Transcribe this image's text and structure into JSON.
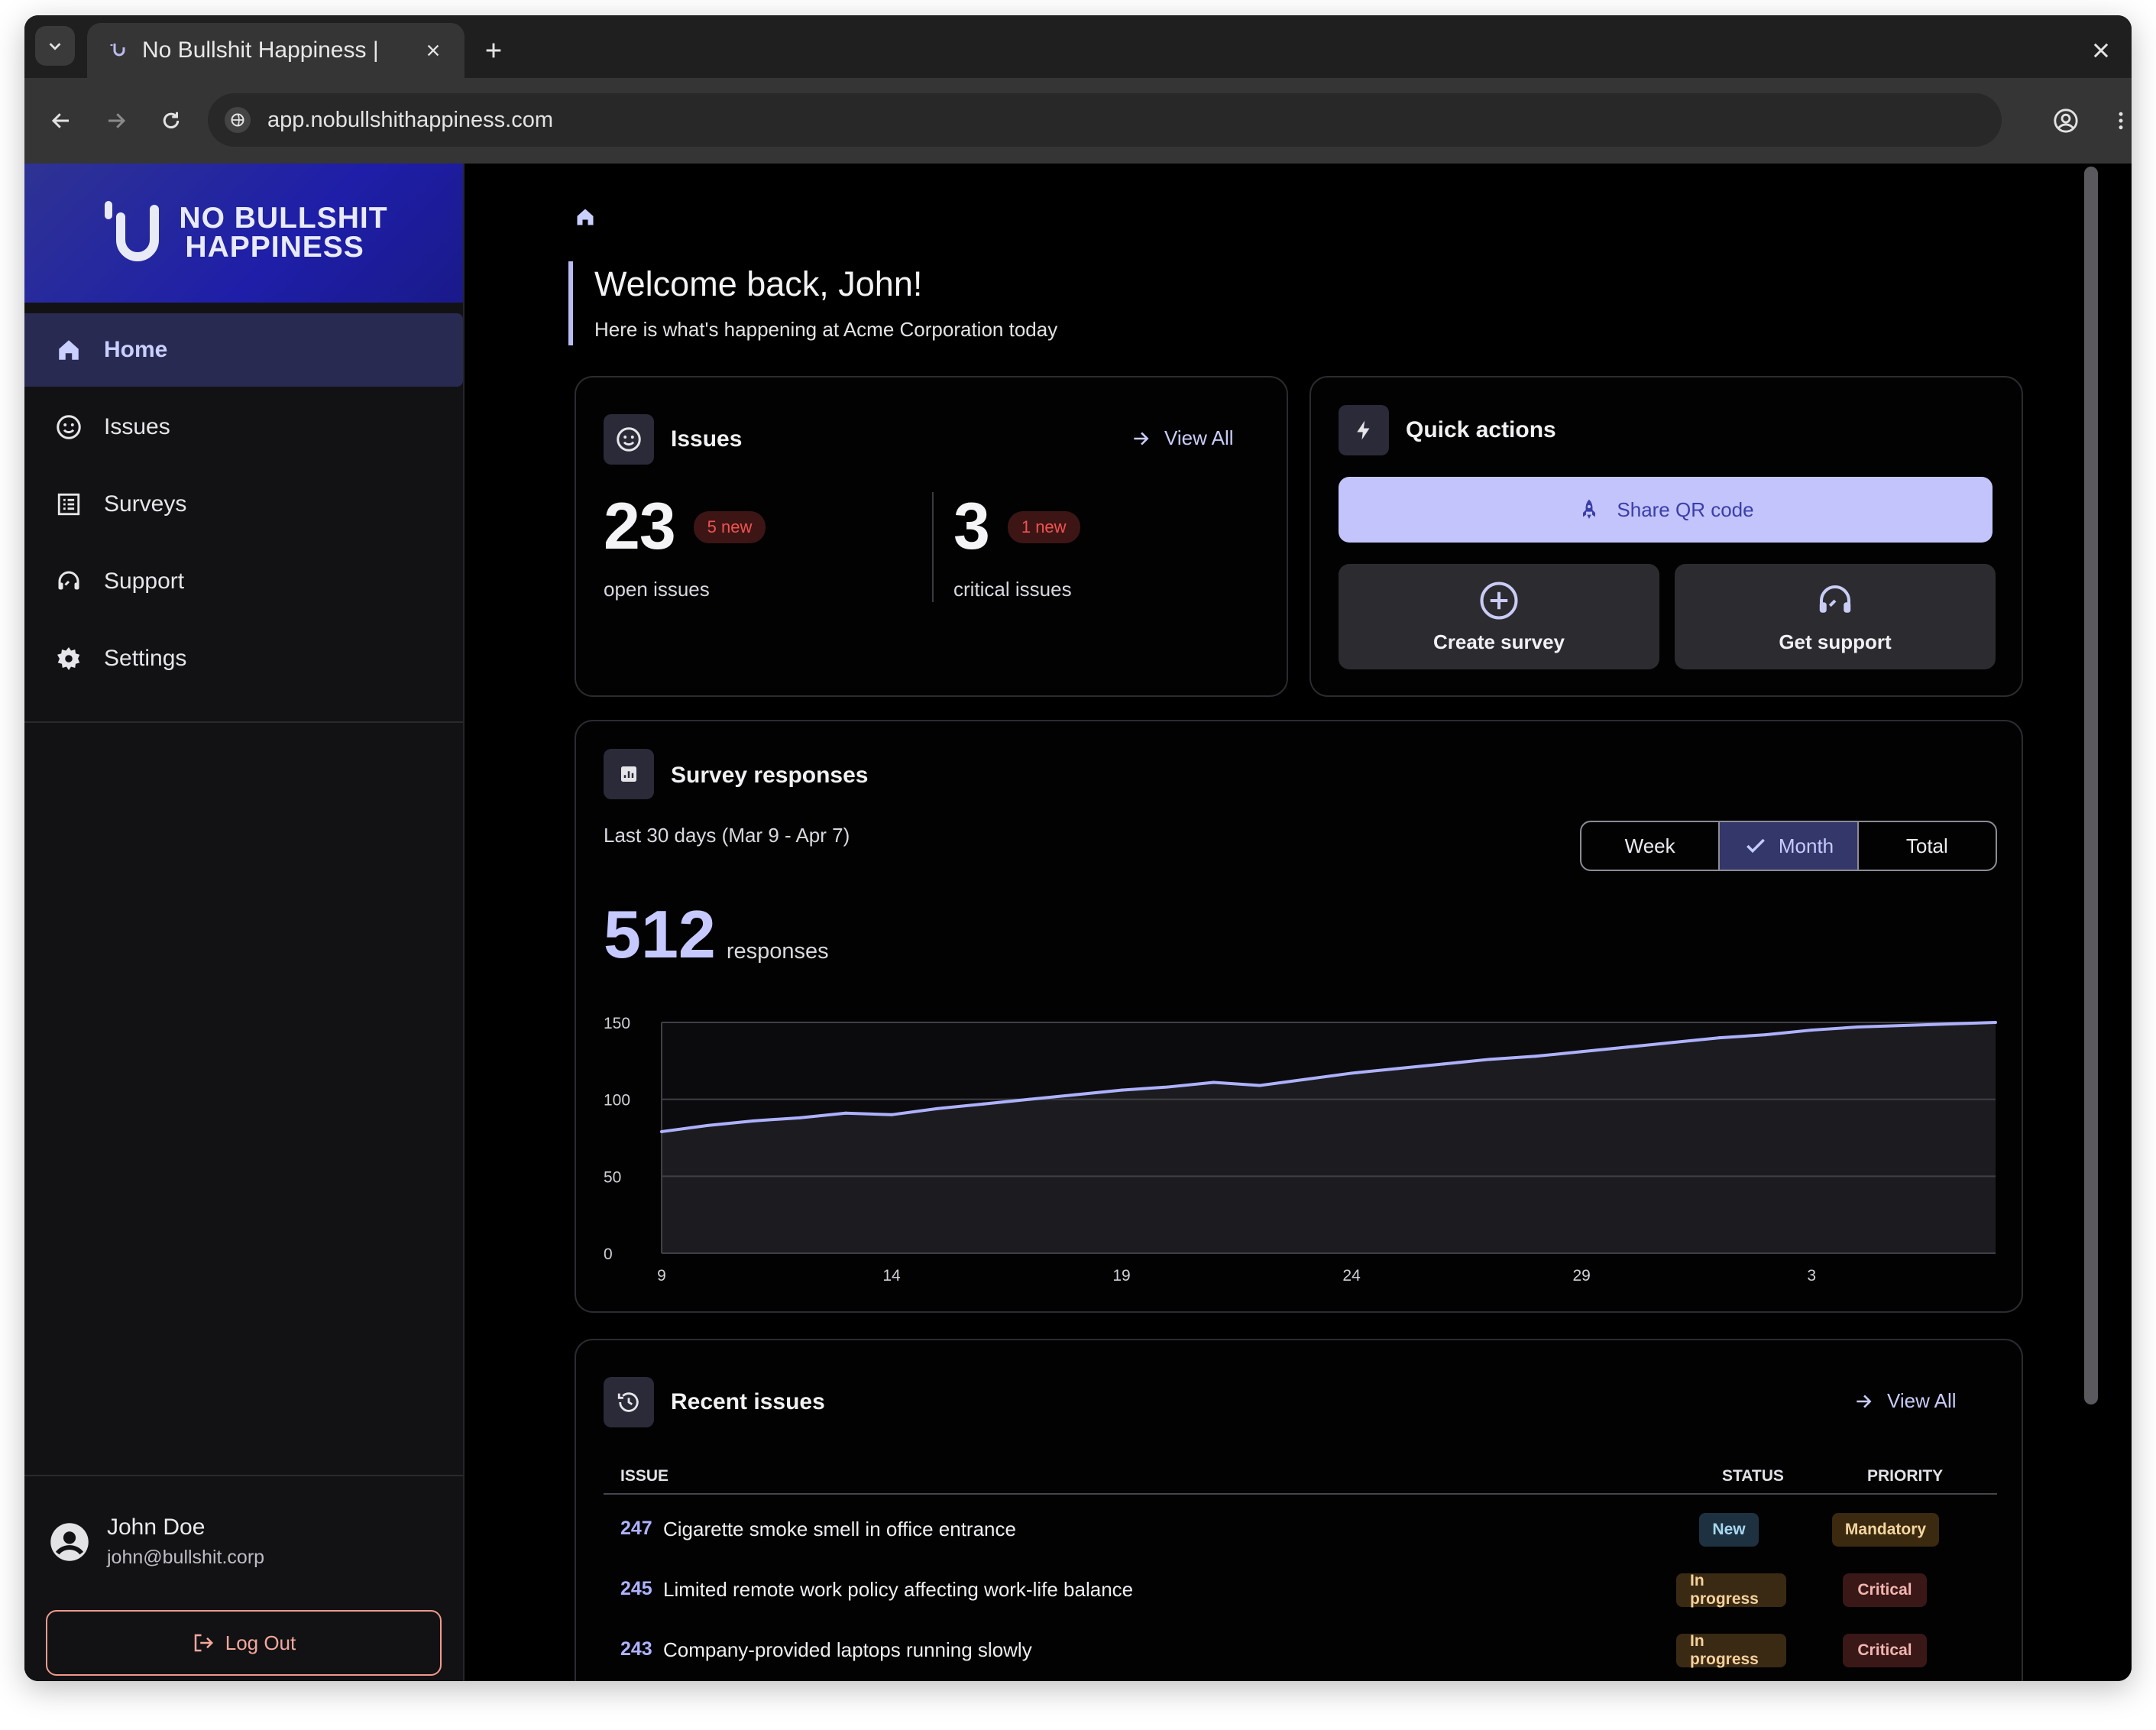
{
  "browser": {
    "tab_title": "No Bullshit Happiness |",
    "url": "app.nobullshithappiness.com"
  },
  "sidebar": {
    "brand_line1": "NO BULLSHIT",
    "brand_line2": "HAPPINESS",
    "items": [
      {
        "label": "Home",
        "icon": "home-icon",
        "active": true
      },
      {
        "label": "Issues",
        "icon": "smiley-icon",
        "active": false
      },
      {
        "label": "Surveys",
        "icon": "list-icon",
        "active": false
      },
      {
        "label": "Support",
        "icon": "headset-icon",
        "active": false
      },
      {
        "label": "Settings",
        "icon": "gear-icon",
        "active": false
      }
    ],
    "user": {
      "name": "John Doe",
      "email": "john@bullshit.corp"
    },
    "logout_label": "Log Out"
  },
  "welcome": {
    "title": "Welcome back, John!",
    "subtitle": "Here is what's happening at Acme Corporation today"
  },
  "issues_card": {
    "title": "Issues",
    "view_all": "View All",
    "open_count": "23",
    "open_new": "5 new",
    "open_label": "open issues",
    "critical_count": "3",
    "critical_new": "1 new",
    "critical_label": "critical issues"
  },
  "quick_actions": {
    "title": "Quick actions",
    "share_qr": "Share QR code",
    "create_survey": "Create survey",
    "get_support": "Get support"
  },
  "survey_card": {
    "title": "Survey responses",
    "period": "Last 30 days (Mar 9 - Apr 7)",
    "segments": [
      "Week",
      "Month",
      "Total"
    ],
    "active_segment": "Month",
    "total": "512",
    "total_label": "responses"
  },
  "chart_data": {
    "type": "area",
    "ylim": [
      0,
      150
    ],
    "yticks": [
      0,
      50,
      100,
      150
    ],
    "ytick_labels": [
      "0",
      "50",
      "100",
      "150"
    ],
    "xtick_labels": [
      "9",
      "14",
      "19",
      "24",
      "29",
      "3"
    ],
    "xtick_index": [
      0,
      5,
      10,
      15,
      20,
      25
    ],
    "x": [
      "Mar 9",
      "Mar 10",
      "Mar 11",
      "Mar 12",
      "Mar 13",
      "Mar 14",
      "Mar 15",
      "Mar 16",
      "Mar 17",
      "Mar 18",
      "Mar 19",
      "Mar 20",
      "Mar 21",
      "Mar 22",
      "Mar 23",
      "Mar 24",
      "Mar 25",
      "Mar 26",
      "Mar 27",
      "Mar 28",
      "Mar 29",
      "Mar 30",
      "Mar 31",
      "Apr 1",
      "Apr 2",
      "Apr 3",
      "Apr 4",
      "Apr 5",
      "Apr 6",
      "Apr 7"
    ],
    "values": [
      79,
      83,
      86,
      88,
      91,
      90,
      94,
      97,
      100,
      103,
      106,
      108,
      111,
      109,
      113,
      117,
      120,
      123,
      126,
      128,
      131,
      134,
      137,
      140,
      142,
      145,
      147,
      148,
      149,
      150
    ],
    "colors": {
      "line": "#aeb1ff",
      "fill": "#1c1c20",
      "grid": "#3f3f45"
    }
  },
  "recent_issues": {
    "title": "Recent issues",
    "view_all": "View All",
    "columns": {
      "issue": "ISSUE",
      "status": "STATUS",
      "priority": "PRIORITY"
    },
    "rows": [
      {
        "id": "247",
        "title": "Cigarette smoke smell in office entrance",
        "status": "New",
        "priority": "Mandatory"
      },
      {
        "id": "245",
        "title": "Limited remote work policy affecting work-life balance",
        "status": "In progress",
        "priority": "Critical"
      },
      {
        "id": "243",
        "title": "Company-provided laptops running slowly",
        "status": "In progress",
        "priority": "Critical"
      }
    ]
  }
}
